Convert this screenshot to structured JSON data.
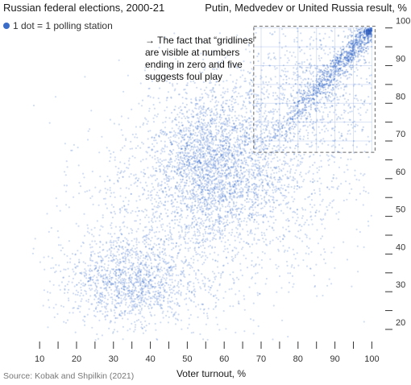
{
  "chart_data": {
    "type": "scatter",
    "title": "Russian federal elections, 2000-21",
    "ylabel": "Putin, Medvedev or United Russia result, %",
    "xlabel": "Voter turnout, %",
    "legend": "1 dot = 1 polling station",
    "legend_position": "top-left",
    "source": "Source: Kobak and Shpilkin (2021)",
    "annotation": {
      "lines": [
        "→ The fact that “gridlines”",
        "are visible at numbers",
        "ending in zero and five",
        "suggests foul play"
      ],
      "box_x": [
        68,
        100
      ],
      "box_y": [
        67,
        100
      ]
    },
    "xlim": [
      8,
      101
    ],
    "ylim": [
      17,
      101
    ],
    "x_ticks": [
      10,
      20,
      30,
      40,
      50,
      60,
      70,
      80,
      90,
      100
    ],
    "y_ticks": [
      20,
      30,
      40,
      50,
      60,
      70,
      80,
      90,
      100
    ],
    "grid": false,
    "dot_color": "#2f64c8",
    "clusters": [
      {
        "x": 35,
        "y": 33,
        "sx": 9,
        "sy": 6,
        "weight": 0.2
      },
      {
        "x": 57,
        "y": 65,
        "sx": 9,
        "sy": 10,
        "weight": 0.38
      },
      {
        "x": 70,
        "y": 60,
        "sx": 14,
        "sy": 14,
        "weight": 0.16
      },
      {
        "x": 45,
        "y": 47,
        "sx": 16,
        "sy": 15,
        "weight": 0.14
      },
      {
        "x": 85,
        "y": 83,
        "sx": 10,
        "sy": 9,
        "weight": 0.12
      }
    ],
    "fraud_peak": {
      "x": 99,
      "y": 99
    }
  }
}
